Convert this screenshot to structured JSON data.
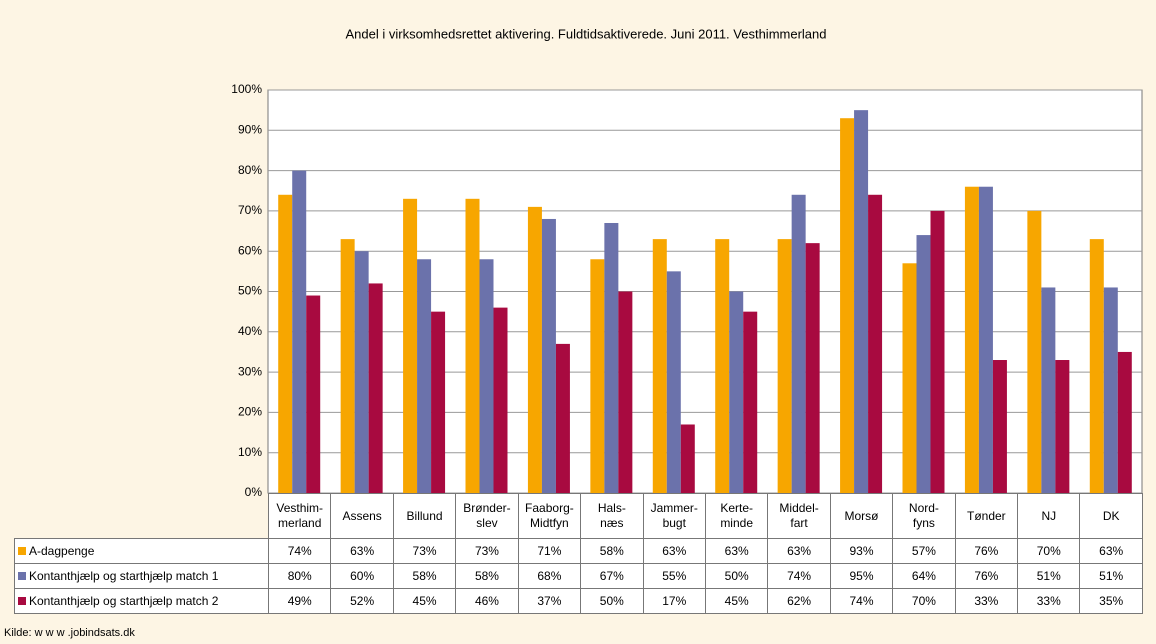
{
  "chart_data": {
    "type": "bar",
    "title": "Andel i virksomhedsrettet aktivering. Fuldtidsaktiverede. Juni 2011. Vesthimmerland",
    "categories": [
      "Vesthim-\nmerland",
      "Assens",
      "Billund",
      "Brønder-\nslev",
      "Faaborg-\nMidtfyn",
      "Hals-\nnæs",
      "Jammer-\nbugt",
      "Kerte-\nminde",
      "Middel-\nfart",
      "Morsø",
      "Nord-\nfyns",
      "Tønder",
      "NJ",
      "DK"
    ],
    "series": [
      {
        "name": "A-dagpenge",
        "color": "#f7a600",
        "values": [
          74,
          63,
          73,
          73,
          71,
          58,
          63,
          63,
          63,
          93,
          57,
          76,
          70,
          63
        ],
        "value_labels": [
          "74%",
          "63%",
          "73%",
          "73%",
          "71%",
          "58%",
          "63%",
          "63%",
          "63%",
          "93%",
          "57%",
          "76%",
          "70%",
          "63%"
        ]
      },
      {
        "name": "Kontanthjælp og starthjælp match 1",
        "color": "#6b72ab",
        "values": [
          80,
          60,
          58,
          58,
          68,
          67,
          55,
          50,
          74,
          95,
          64,
          76,
          51,
          51
        ],
        "value_labels": [
          "80%",
          "60%",
          "58%",
          "58%",
          "68%",
          "67%",
          "55%",
          "50%",
          "74%",
          "95%",
          "64%",
          "76%",
          "51%",
          "51%"
        ]
      },
      {
        "name": "Kontanthjælp og starthjælp match 2",
        "color": "#a80a40",
        "values": [
          49,
          52,
          45,
          46,
          37,
          50,
          17,
          45,
          62,
          74,
          70,
          33,
          33,
          35
        ],
        "value_labels": [
          "49%",
          "52%",
          "45%",
          "46%",
          "37%",
          "50%",
          "17%",
          "45%",
          "62%",
          "74%",
          "70%",
          "33%",
          "33%",
          "35%"
        ]
      }
    ],
    "ylim": [
      0,
      100
    ],
    "yticks": [
      {
        "value": 0,
        "label": "0%"
      },
      {
        "value": 10,
        "label": "10%"
      },
      {
        "value": 20,
        "label": "20%"
      },
      {
        "value": 30,
        "label": "30%"
      },
      {
        "value": 40,
        "label": "40%"
      },
      {
        "value": 50,
        "label": "50%"
      },
      {
        "value": 60,
        "label": "60%"
      },
      {
        "value": 70,
        "label": "70%"
      },
      {
        "value": 80,
        "label": "80%"
      },
      {
        "value": 90,
        "label": "90%"
      },
      {
        "value": 100,
        "label": "100%"
      }
    ],
    "grid": true,
    "source": "Kilde: w w w .jobindsats.dk"
  }
}
